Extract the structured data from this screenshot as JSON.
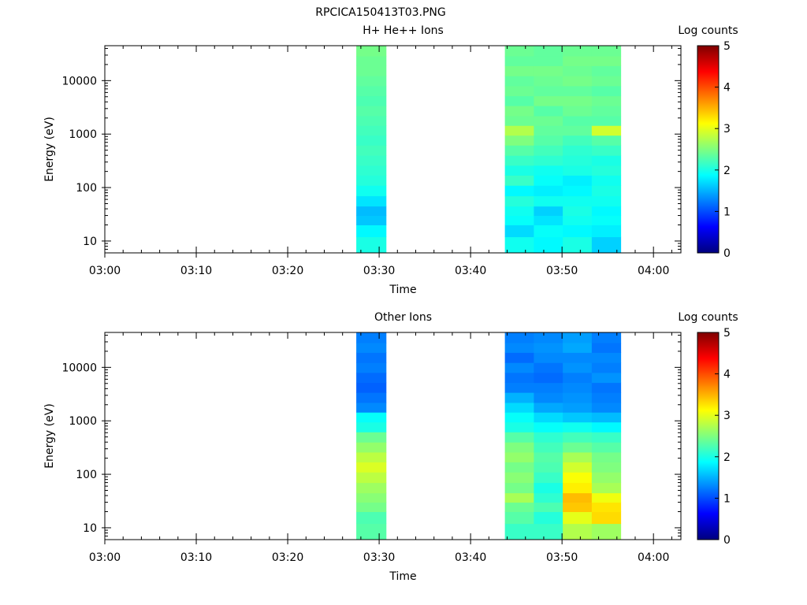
{
  "figure_title": "RPCICA150413T03.PNG",
  "chart_data": [
    {
      "type": "heatmap",
      "title": "H+ He++ Ions",
      "xlabel": "Time",
      "ylabel": "Energy (eV)",
      "colorbar_label": "Log counts",
      "colorbar_range": [
        0,
        5
      ],
      "colorbar_ticks": [
        "0",
        "1",
        "2",
        "3",
        "4",
        "5"
      ],
      "colormap": [
        "#00007f",
        "#0000ff",
        "#007fff",
        "#00ffff",
        "#7fff7f",
        "#ffff00",
        "#ff7f00",
        "#ff0000",
        "#7f0000"
      ],
      "yscale": "log",
      "ylim": [
        6,
        45000
      ],
      "yticks": [
        "10",
        "100",
        "1000",
        "10000"
      ],
      "xlim": [
        "03:00",
        "04:03"
      ],
      "xticks": [
        "03:00",
        "03:10",
        "03:20",
        "03:30",
        "03:40",
        "03:50",
        "04:00"
      ],
      "bins": {
        "energy_edges": [
          6,
          12,
          20,
          30,
          45,
          70,
          110,
          170,
          260,
          400,
          620,
          950,
          1450,
          2200,
          3400,
          5200,
          8000,
          12300,
          19000,
          29000,
          45000
        ],
        "time_columns": [
          {
            "start": "03:27:30",
            "end": "03:30:45",
            "values": [
              2.0,
              1.85,
              1.6,
              1.55,
              1.75,
              1.95,
              2.05,
              2.1,
              2.15,
              2.2,
              2.15,
              2.2,
              2.25,
              2.3,
              2.25,
              2.3,
              2.35,
              2.4,
              2.4,
              2.45
            ]
          },
          {
            "start": "03:43:45",
            "end": "03:46:55",
            "values": [
              1.95,
              1.7,
              1.9,
              1.95,
              2.05,
              1.85,
              2.15,
              2.0,
              2.15,
              2.3,
              2.5,
              2.75,
              2.4,
              2.45,
              2.3,
              2.4,
              2.35,
              2.45,
              2.35,
              2.4
            ]
          },
          {
            "start": "03:46:55",
            "end": "03:50:05",
            "values": [
              1.85,
              1.9,
              1.75,
              1.65,
              1.95,
              1.8,
              1.9,
              1.95,
              2.1,
              2.2,
              2.3,
              2.35,
              2.4,
              2.3,
              2.45,
              2.35,
              2.4,
              2.45,
              2.35,
              2.35
            ]
          },
          {
            "start": "03:50:05",
            "end": "03:53:15",
            "values": [
              2.0,
              1.85,
              1.95,
              2.0,
              1.95,
              1.85,
              1.8,
              2.0,
              2.05,
              2.1,
              2.2,
              2.35,
              2.3,
              2.4,
              2.45,
              2.35,
              2.45,
              2.4,
              2.45,
              2.4
            ]
          },
          {
            "start": "03:53:15",
            "end": "03:56:25",
            "values": [
              1.65,
              1.8,
              1.9,
              1.85,
              1.95,
              2.0,
              1.95,
              2.05,
              2.0,
              2.15,
              2.3,
              2.9,
              2.3,
              2.35,
              2.4,
              2.3,
              2.4,
              2.35,
              2.45,
              2.4
            ]
          }
        ]
      }
    },
    {
      "type": "heatmap",
      "title": "Other Ions",
      "xlabel": "Time",
      "ylabel": "Energy (eV)",
      "colorbar_label": "Log counts",
      "colorbar_range": [
        0,
        5
      ],
      "colorbar_ticks": [
        "0",
        "1",
        "2",
        "3",
        "4",
        "5"
      ],
      "colormap": [
        "#00007f",
        "#0000ff",
        "#007fff",
        "#00ffff",
        "#7fff7f",
        "#ffff00",
        "#ff7f00",
        "#ff0000",
        "#7f0000"
      ],
      "yscale": "log",
      "ylim": [
        6,
        45000
      ],
      "yticks": [
        "10",
        "100",
        "1000",
        "10000"
      ],
      "xlim": [
        "03:00",
        "04:03"
      ],
      "xticks": [
        "03:00",
        "03:10",
        "03:20",
        "03:30",
        "03:40",
        "03:50",
        "04:00"
      ],
      "bins": {
        "energy_edges": [
          6,
          12,
          20,
          30,
          45,
          70,
          110,
          170,
          260,
          400,
          620,
          950,
          1450,
          2200,
          3400,
          5200,
          8000,
          12300,
          19000,
          29000,
          45000
        ],
        "time_columns": [
          {
            "start": "03:27:30",
            "end": "03:30:45",
            "values": [
              2.3,
              2.25,
              2.45,
              2.55,
              2.65,
              2.8,
              2.95,
              2.8,
              2.6,
              2.4,
              2.0,
              1.9,
              1.3,
              1.2,
              1.1,
              1.15,
              1.25,
              1.2,
              1.3,
              1.25
            ]
          },
          {
            "start": "03:43:45",
            "end": "03:46:55",
            "values": [
              2.15,
              2.3,
              2.4,
              2.7,
              2.45,
              2.55,
              2.45,
              2.6,
              2.5,
              2.3,
              2.0,
              1.9,
              1.7,
              1.5,
              1.25,
              1.2,
              1.3,
              1.15,
              1.3,
              1.25
            ]
          },
          {
            "start": "03:46:55",
            "end": "03:50:05",
            "values": [
              2.15,
              2.05,
              2.25,
              2.1,
              2.0,
              2.15,
              2.25,
              2.3,
              2.2,
              2.1,
              1.9,
              1.7,
              1.45,
              1.3,
              1.25,
              1.15,
              1.2,
              1.3,
              1.35,
              1.3
            ]
          },
          {
            "start": "03:50:05",
            "end": "03:53:15",
            "values": [
              2.75,
              3.0,
              3.4,
              3.45,
              3.2,
              3.1,
              2.9,
              2.7,
              2.4,
              2.2,
              1.95,
              1.6,
              1.4,
              1.35,
              1.3,
              1.25,
              1.35,
              1.3,
              1.45,
              1.4
            ]
          },
          {
            "start": "03:53:15",
            "end": "03:56:25",
            "values": [
              2.65,
              3.3,
              3.25,
              3.05,
              2.7,
              2.6,
              2.5,
              2.45,
              2.3,
              2.15,
              1.85,
              1.55,
              1.3,
              1.25,
              1.2,
              1.35,
              1.25,
              1.3,
              1.2,
              1.25
            ]
          }
        ]
      }
    }
  ]
}
